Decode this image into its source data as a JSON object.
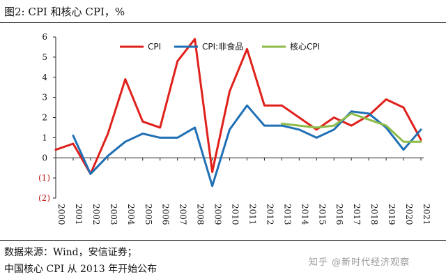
{
  "header": {
    "title": "图2:  CPI 和核心 CPI，%"
  },
  "footer": {
    "source": "数据来源：Wind，安信证券；",
    "remark": "中国核心 CPI 从 2013 年开始公布",
    "watermark": "知乎 @新时代经济观察"
  },
  "chart_data": {
    "type": "line",
    "x": [
      "2000",
      "2001",
      "2002",
      "2003",
      "2004",
      "2005",
      "2006",
      "2007",
      "2008",
      "2009",
      "2010",
      "2011",
      "2012",
      "2013",
      "2014",
      "2015",
      "2016",
      "2017",
      "2018",
      "2019",
      "2020",
      "2021"
    ],
    "ylim": [
      -2,
      6
    ],
    "yticks": [
      6,
      5,
      4,
      3,
      2,
      1,
      0,
      -1,
      -2
    ],
    "ytick_labels": [
      "6",
      "5",
      "4",
      "3",
      "2",
      "1",
      "0",
      "(1)",
      "(2)"
    ],
    "grid": false,
    "legend": "top",
    "series": [
      {
        "name": "CPI",
        "color": "#e0201b",
        "values": [
          0.4,
          0.7,
          -0.8,
          1.2,
          3.9,
          1.8,
          1.5,
          4.8,
          5.9,
          -0.7,
          3.3,
          5.4,
          2.6,
          2.6,
          2.0,
          1.4,
          2.0,
          1.6,
          2.1,
          2.9,
          2.5,
          0.9
        ]
      },
      {
        "name": "CPI:非食品",
        "color": "#1f6fb5",
        "values": [
          null,
          1.1,
          -0.8,
          0.1,
          0.8,
          1.2,
          1.0,
          1.0,
          1.5,
          -1.4,
          1.4,
          2.6,
          1.6,
          1.6,
          1.4,
          1.0,
          1.4,
          2.3,
          2.2,
          1.5,
          0.4,
          1.4
        ]
      },
      {
        "name": "核心CPI",
        "color": "#8dbb48",
        "values": [
          null,
          null,
          null,
          null,
          null,
          null,
          null,
          null,
          null,
          null,
          null,
          null,
          null,
          1.7,
          1.6,
          1.5,
          1.6,
          2.2,
          1.9,
          1.6,
          0.8,
          0.8
        ]
      }
    ]
  }
}
